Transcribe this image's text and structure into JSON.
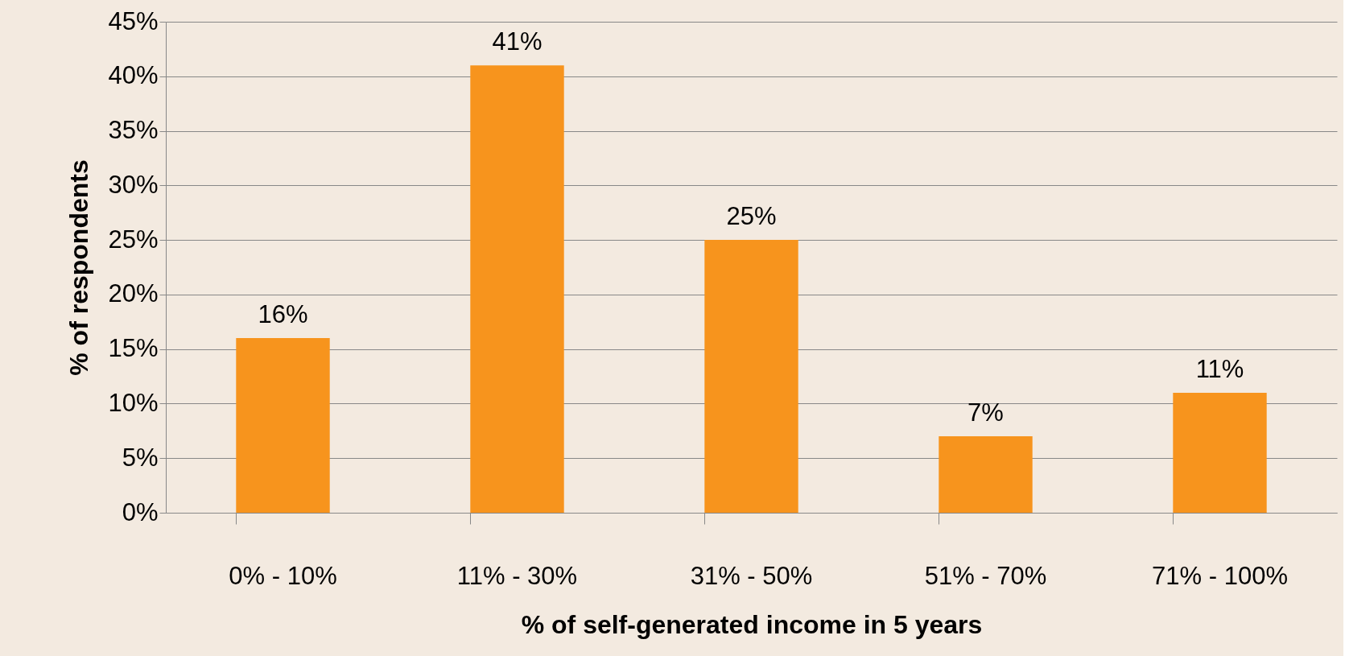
{
  "chart_data": {
    "type": "bar",
    "xlabel": "% of self-generated income in 5 years",
    "ylabel": "% of respondents",
    "categories": [
      "0% - 10%",
      "11% - 30%",
      "31% - 50%",
      "51% - 70%",
      "71% - 100%"
    ],
    "values": [
      16,
      41,
      25,
      7,
      11
    ],
    "value_labels": [
      "16%",
      "41%",
      "25%",
      "7%",
      "11%"
    ],
    "color": "#f7941d",
    "ylim": [
      0,
      45
    ],
    "yticks": [
      {
        "value": 0,
        "label": "0%"
      },
      {
        "value": 5,
        "label": "5%"
      },
      {
        "value": 10,
        "label": "10%"
      },
      {
        "value": 15,
        "label": "15%"
      },
      {
        "value": 20,
        "label": "20%"
      },
      {
        "value": 25,
        "label": "25%"
      },
      {
        "value": 30,
        "label": "30%"
      },
      {
        "value": 35,
        "label": "35%"
      },
      {
        "value": 40,
        "label": "40%"
      },
      {
        "value": 45,
        "label": "45%"
      }
    ],
    "grid": "y"
  }
}
